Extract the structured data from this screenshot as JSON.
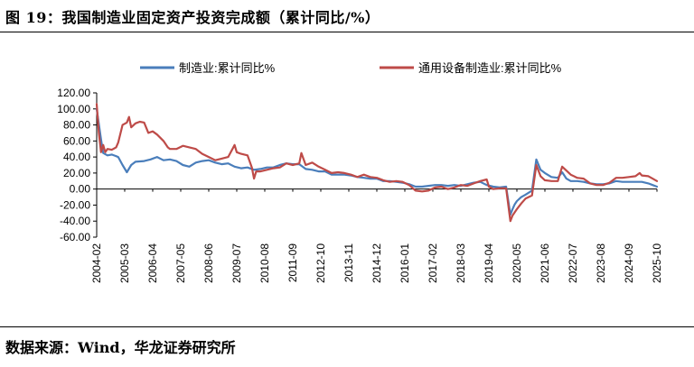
{
  "page": {
    "title": "图 19：我国制造业固定资产投资完成额（累计同比/%）",
    "source": "数据来源：Wind，华龙证券研究所"
  },
  "colors": {
    "series1": "#4a7ebb",
    "series2": "#be4b48"
  },
  "chart_data": {
    "type": "line",
    "title": "",
    "xlabel": "",
    "ylabel": "",
    "ylim": [
      -60,
      120
    ],
    "yticks": [
      "120.00",
      "100.00",
      "80.00",
      "60.00",
      "40.00",
      "20.00",
      "0.00",
      "-20.00",
      "-40.00",
      "-60.00"
    ],
    "yvalues": [
      120,
      100,
      80,
      60,
      40,
      20,
      0,
      -20,
      -40,
      -60
    ],
    "xrange": [
      "2004-02",
      "2025-10"
    ],
    "xticks": [
      "2004-02",
      "2005-03",
      "2006-04",
      "2007-05",
      "2008-06",
      "2009-07",
      "2010-08",
      "2011-09",
      "2012-10",
      "2013-11",
      "2014-12",
      "2016-01",
      "2017-02",
      "2018-03",
      "2019-04",
      "2020-05",
      "2021-06",
      "2022-07",
      "2023-08",
      "2024-09",
      "2025-10"
    ],
    "legend_position": "top",
    "series": [
      {
        "name": "制造业:累计同比%",
        "color": "#4a7ebb",
        "points": [
          [
            "2004-02",
            100
          ],
          [
            "2004-04",
            62
          ],
          [
            "2004-05",
            45
          ],
          [
            "2004-07",
            42
          ],
          [
            "2004-09",
            43
          ],
          [
            "2004-11",
            41
          ],
          [
            "2004-12",
            40
          ],
          [
            "2005-02",
            30
          ],
          [
            "2005-04",
            21
          ],
          [
            "2005-06",
            30
          ],
          [
            "2005-08",
            34
          ],
          [
            "2005-12",
            35
          ],
          [
            "2006-03",
            37
          ],
          [
            "2006-06",
            40
          ],
          [
            "2006-09",
            36
          ],
          [
            "2006-12",
            37
          ],
          [
            "2007-03",
            35
          ],
          [
            "2007-06",
            30
          ],
          [
            "2007-09",
            28
          ],
          [
            "2007-12",
            33
          ],
          [
            "2008-03",
            35
          ],
          [
            "2008-06",
            36
          ],
          [
            "2008-09",
            33
          ],
          [
            "2008-12",
            31
          ],
          [
            "2009-03",
            32
          ],
          [
            "2009-06",
            28
          ],
          [
            "2009-09",
            26
          ],
          [
            "2009-12",
            27
          ],
          [
            "2010-03",
            24
          ],
          [
            "2010-06",
            25
          ],
          [
            "2010-09",
            27
          ],
          [
            "2010-12",
            27
          ],
          [
            "2011-03",
            30
          ],
          [
            "2011-06",
            32
          ],
          [
            "2011-09",
            31
          ],
          [
            "2011-12",
            31
          ],
          [
            "2012-03",
            25
          ],
          [
            "2012-06",
            24
          ],
          [
            "2012-09",
            22
          ],
          [
            "2012-12",
            22
          ],
          [
            "2013-03",
            18
          ],
          [
            "2013-06",
            18
          ],
          [
            "2013-09",
            18
          ],
          [
            "2013-12",
            17
          ],
          [
            "2014-03",
            15
          ],
          [
            "2014-06",
            14
          ],
          [
            "2014-09",
            13
          ],
          [
            "2014-12",
            13
          ],
          [
            "2015-03",
            10
          ],
          [
            "2015-06",
            10
          ],
          [
            "2015-09",
            9
          ],
          [
            "2015-12",
            8
          ],
          [
            "2016-03",
            6
          ],
          [
            "2016-06",
            3
          ],
          [
            "2016-09",
            3
          ],
          [
            "2016-12",
            4
          ],
          [
            "2017-03",
            5
          ],
          [
            "2017-06",
            5
          ],
          [
            "2017-09",
            4
          ],
          [
            "2017-12",
            5
          ],
          [
            "2018-03",
            4
          ],
          [
            "2018-06",
            6
          ],
          [
            "2018-09",
            8
          ],
          [
            "2018-12",
            9
          ],
          [
            "2019-03",
            5
          ],
          [
            "2019-06",
            3
          ],
          [
            "2019-09",
            2
          ],
          [
            "2019-12",
            3
          ],
          [
            "2020-02",
            -32
          ],
          [
            "2020-03",
            -25
          ],
          [
            "2020-04",
            -19
          ],
          [
            "2020-05",
            -15
          ],
          [
            "2020-07",
            -10
          ],
          [
            "2020-09",
            -7
          ],
          [
            "2020-12",
            -2
          ],
          [
            "2021-02",
            37
          ],
          [
            "2021-04",
            24
          ],
          [
            "2021-06",
            20
          ],
          [
            "2021-09",
            15
          ],
          [
            "2021-12",
            14
          ],
          [
            "2022-02",
            21
          ],
          [
            "2022-04",
            13
          ],
          [
            "2022-06",
            10
          ],
          [
            "2022-09",
            10
          ],
          [
            "2022-12",
            9
          ],
          [
            "2023-03",
            7
          ],
          [
            "2023-06",
            6
          ],
          [
            "2023-09",
            6
          ],
          [
            "2023-12",
            7
          ],
          [
            "2024-03",
            10
          ],
          [
            "2024-06",
            9
          ],
          [
            "2024-09",
            9
          ],
          [
            "2024-12",
            9
          ],
          [
            "2025-03",
            9
          ],
          [
            "2025-06",
            7
          ],
          [
            "2025-08",
            5
          ],
          [
            "2025-10",
            3
          ]
        ]
      },
      {
        "name": "通用设备制造业:累计同比%",
        "color": "#be4b48",
        "points": [
          [
            "2004-02",
            106
          ],
          [
            "2004-03",
            70
          ],
          [
            "2004-04",
            46
          ],
          [
            "2004-05",
            55
          ],
          [
            "2004-06",
            46
          ],
          [
            "2004-07",
            50
          ],
          [
            "2004-09",
            49
          ],
          [
            "2004-11",
            52
          ],
          [
            "2004-12",
            58
          ],
          [
            "2005-02",
            80
          ],
          [
            "2005-04",
            83
          ],
          [
            "2005-05",
            90
          ],
          [
            "2005-06",
            77
          ],
          [
            "2005-08",
            82
          ],
          [
            "2005-10",
            84
          ],
          [
            "2005-12",
            83
          ],
          [
            "2006-02",
            70
          ],
          [
            "2006-04",
            72
          ],
          [
            "2006-06",
            68
          ],
          [
            "2006-09",
            60
          ],
          [
            "2006-11",
            52
          ],
          [
            "2006-12",
            50
          ],
          [
            "2007-03",
            50
          ],
          [
            "2007-06",
            54
          ],
          [
            "2007-09",
            52
          ],
          [
            "2007-12",
            50
          ],
          [
            "2008-03",
            44
          ],
          [
            "2008-06",
            40
          ],
          [
            "2008-09",
            36
          ],
          [
            "2008-12",
            38
          ],
          [
            "2009-03",
            40
          ],
          [
            "2009-06",
            55
          ],
          [
            "2009-07",
            46
          ],
          [
            "2009-09",
            44
          ],
          [
            "2009-12",
            42
          ],
          [
            "2010-02",
            27
          ],
          [
            "2010-03",
            13
          ],
          [
            "2010-04",
            22
          ],
          [
            "2010-06",
            22
          ],
          [
            "2010-09",
            24
          ],
          [
            "2010-12",
            26
          ],
          [
            "2011-03",
            27
          ],
          [
            "2011-06",
            32
          ],
          [
            "2011-09",
            30
          ],
          [
            "2011-12",
            32
          ],
          [
            "2012-01",
            45
          ],
          [
            "2012-03",
            30
          ],
          [
            "2012-06",
            33
          ],
          [
            "2012-09",
            28
          ],
          [
            "2012-12",
            24
          ],
          [
            "2013-03",
            20
          ],
          [
            "2013-06",
            21
          ],
          [
            "2013-09",
            20
          ],
          [
            "2013-12",
            18
          ],
          [
            "2014-03",
            15
          ],
          [
            "2014-06",
            18
          ],
          [
            "2014-09",
            15
          ],
          [
            "2014-12",
            14
          ],
          [
            "2015-03",
            11
          ],
          [
            "2015-06",
            9
          ],
          [
            "2015-09",
            10
          ],
          [
            "2015-12",
            9
          ],
          [
            "2016-03",
            5
          ],
          [
            "2016-06",
            -2
          ],
          [
            "2016-09",
            -3
          ],
          [
            "2016-12",
            -2
          ],
          [
            "2017-03",
            2
          ],
          [
            "2017-06",
            3
          ],
          [
            "2017-09",
            0
          ],
          [
            "2017-12",
            2
          ],
          [
            "2018-03",
            5
          ],
          [
            "2018-06",
            4
          ],
          [
            "2018-09",
            7
          ],
          [
            "2018-12",
            10
          ],
          [
            "2019-03",
            12
          ],
          [
            "2019-04",
            3
          ],
          [
            "2019-06",
            0
          ],
          [
            "2019-09",
            1
          ],
          [
            "2019-12",
            1
          ],
          [
            "2020-02",
            -40
          ],
          [
            "2020-03",
            -33
          ],
          [
            "2020-05",
            -25
          ],
          [
            "2020-07",
            -18
          ],
          [
            "2020-09",
            -12
          ],
          [
            "2020-12",
            -8
          ],
          [
            "2021-02",
            30
          ],
          [
            "2021-04",
            16
          ],
          [
            "2021-06",
            11
          ],
          [
            "2021-09",
            10
          ],
          [
            "2021-12",
            10
          ],
          [
            "2022-02",
            28
          ],
          [
            "2022-04",
            23
          ],
          [
            "2022-06",
            18
          ],
          [
            "2022-09",
            14
          ],
          [
            "2022-12",
            13
          ],
          [
            "2023-03",
            7
          ],
          [
            "2023-06",
            5
          ],
          [
            "2023-09",
            5
          ],
          [
            "2023-12",
            8
          ],
          [
            "2024-03",
            14
          ],
          [
            "2024-06",
            14
          ],
          [
            "2024-09",
            15
          ],
          [
            "2024-12",
            16
          ],
          [
            "2025-02",
            20
          ],
          [
            "2025-03",
            17
          ],
          [
            "2025-06",
            16
          ],
          [
            "2025-08",
            13
          ],
          [
            "2025-10",
            10
          ]
        ]
      }
    ]
  }
}
